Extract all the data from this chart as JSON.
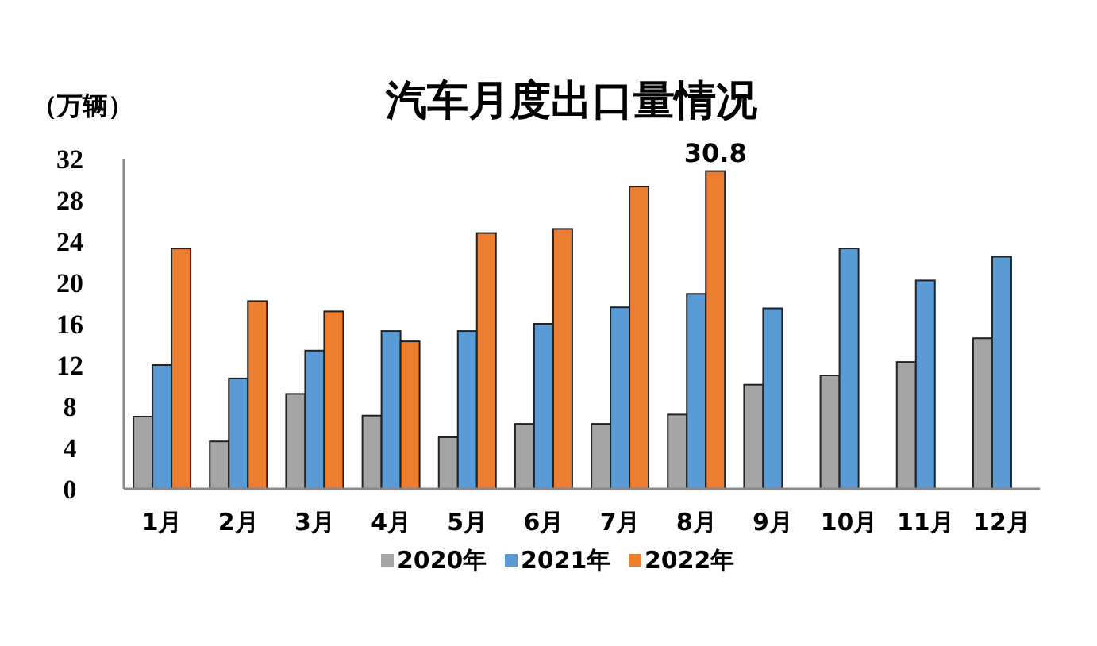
{
  "chart_data": {
    "type": "bar",
    "title": "汽车月度出口量情况",
    "ylabel": "（万辆）",
    "categories": [
      "1月",
      "2月",
      "3月",
      "4月",
      "5月",
      "6月",
      "7月",
      "8月",
      "9月",
      "10月",
      "11月",
      "12月"
    ],
    "series": [
      {
        "name": "2020年",
        "color": "#a5a5a5",
        "values": [
          7.0,
          4.6,
          9.2,
          7.1,
          5.0,
          6.3,
          6.3,
          7.2,
          10.1,
          11.0,
          12.3,
          14.6
        ]
      },
      {
        "name": "2021年",
        "color": "#5b9bd5",
        "values": [
          12.0,
          10.7,
          13.4,
          15.3,
          15.3,
          16.0,
          17.6,
          18.9,
          17.5,
          23.3,
          20.2,
          22.5
        ]
      },
      {
        "name": "2022年",
        "color": "#ed7d31",
        "values": [
          23.3,
          18.2,
          17.2,
          14.3,
          24.8,
          25.2,
          29.3,
          30.8,
          null,
          null,
          null,
          null
        ],
        "value_labels": [
          null,
          null,
          null,
          null,
          null,
          null,
          null,
          "30.8",
          null,
          null,
          null,
          null
        ]
      }
    ],
    "ylim": [
      0,
      32
    ],
    "yticks": [
      0,
      4,
      8,
      12,
      16,
      20,
      24,
      28,
      32
    ],
    "legend": "bottom"
  }
}
